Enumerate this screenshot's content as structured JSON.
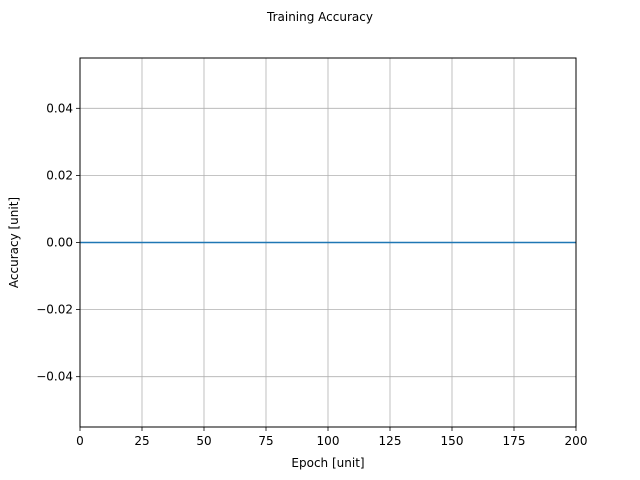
{
  "chart_data": {
    "type": "line",
    "title": "Training Accuracy",
    "xlabel": "Epoch [unit]",
    "ylabel": "Accuracy [unit]",
    "xlim": [
      0,
      200
    ],
    "ylim": [
      -0.055,
      0.055
    ],
    "xticks": [
      0,
      25,
      50,
      75,
      100,
      125,
      150,
      175,
      200
    ],
    "xtick_labels": [
      "0",
      "25",
      "50",
      "75",
      "100",
      "125",
      "150",
      "175",
      "200"
    ],
    "yticks": [
      -0.04,
      -0.02,
      0.0,
      0.02,
      0.04
    ],
    "ytick_labels": [
      "−0.04",
      "−0.02",
      "0.00",
      "0.02",
      "0.04"
    ],
    "grid": true,
    "series": [
      {
        "color": "#1f77b4",
        "x": [
          0,
          200
        ],
        "y": [
          0,
          0
        ]
      }
    ]
  }
}
